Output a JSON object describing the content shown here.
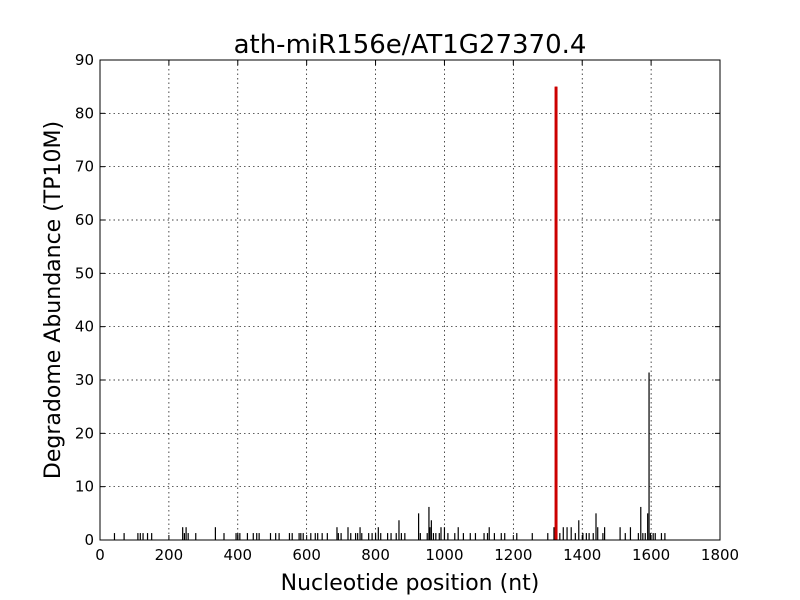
{
  "chart_data": {
    "type": "bar",
    "title": "ath-miR156e/AT1G27370.4",
    "xlabel": "Nucleotide position (nt)",
    "ylabel": "Degradome Abundance (TP10M)",
    "xlim": [
      0,
      1800
    ],
    "ylim": [
      0,
      90
    ],
    "xticks": [
      0,
      200,
      400,
      600,
      800,
      1000,
      1200,
      1400,
      1600,
      1800
    ],
    "yticks": [
      0,
      10,
      20,
      30,
      40,
      50,
      60,
      70,
      80,
      90
    ],
    "grid": true,
    "colors": {
      "background": "#000000",
      "highlight": "#cc0000"
    },
    "series": [
      {
        "color": "#000000",
        "points": [
          [
            42,
            1.3
          ],
          [
            70,
            1.3
          ],
          [
            110,
            1.3
          ],
          [
            117,
            1.3
          ],
          [
            125,
            1.3
          ],
          [
            138,
            1.3
          ],
          [
            150,
            1.3
          ],
          [
            240,
            2.4
          ],
          [
            245,
            1.3
          ],
          [
            250,
            2.4
          ],
          [
            256,
            1.3
          ],
          [
            278,
            1.3
          ],
          [
            335,
            2.4
          ],
          [
            360,
            1.3
          ],
          [
            395,
            1.3
          ],
          [
            400,
            1.3
          ],
          [
            406,
            1.3
          ],
          [
            428,
            1.3
          ],
          [
            445,
            1.3
          ],
          [
            455,
            1.3
          ],
          [
            462,
            1.3
          ],
          [
            495,
            1.3
          ],
          [
            510,
            1.3
          ],
          [
            520,
            1.3
          ],
          [
            550,
            1.3
          ],
          [
            558,
            1.3
          ],
          [
            578,
            1.3
          ],
          [
            583,
            1.3
          ],
          [
            590,
            1.3
          ],
          [
            612,
            1.3
          ],
          [
            625,
            1.3
          ],
          [
            632,
            1.3
          ],
          [
            645,
            1.3
          ],
          [
            660,
            1.3
          ],
          [
            688,
            2.4
          ],
          [
            692,
            1.3
          ],
          [
            700,
            1.3
          ],
          [
            720,
            2.4
          ],
          [
            728,
            1.3
          ],
          [
            742,
            1.3
          ],
          [
            748,
            1.3
          ],
          [
            755,
            2.4
          ],
          [
            760,
            1.3
          ],
          [
            780,
            1.3
          ],
          [
            790,
            1.3
          ],
          [
            800,
            1.3
          ],
          [
            808,
            2.4
          ],
          [
            815,
            1.3
          ],
          [
            835,
            1.3
          ],
          [
            845,
            1.3
          ],
          [
            860,
            1.3
          ],
          [
            868,
            3.7
          ],
          [
            875,
            1.3
          ],
          [
            885,
            1.3
          ],
          [
            925,
            5.0
          ],
          [
            930,
            1.3
          ],
          [
            950,
            1.3
          ],
          [
            955,
            6.2
          ],
          [
            958,
            2.4
          ],
          [
            962,
            3.7
          ],
          [
            968,
            1.3
          ],
          [
            975,
            1.3
          ],
          [
            985,
            1.3
          ],
          [
            990,
            2.4
          ],
          [
            1000,
            2.4
          ],
          [
            1010,
            1.3
          ],
          [
            1030,
            1.3
          ],
          [
            1040,
            2.4
          ],
          [
            1055,
            1.3
          ],
          [
            1075,
            1.3
          ],
          [
            1090,
            1.3
          ],
          [
            1115,
            1.3
          ],
          [
            1125,
            1.3
          ],
          [
            1130,
            2.4
          ],
          [
            1145,
            1.3
          ],
          [
            1165,
            1.3
          ],
          [
            1175,
            1.3
          ],
          [
            1210,
            1.3
          ],
          [
            1255,
            1.3
          ],
          [
            1300,
            1.3
          ],
          [
            1318,
            2.4
          ],
          [
            1335,
            1.3
          ],
          [
            1345,
            2.4
          ],
          [
            1356,
            2.4
          ],
          [
            1368,
            2.4
          ],
          [
            1380,
            1.3
          ],
          [
            1390,
            3.7
          ],
          [
            1402,
            1.3
          ],
          [
            1412,
            1.3
          ],
          [
            1420,
            1.3
          ],
          [
            1432,
            1.3
          ],
          [
            1440,
            5.0
          ],
          [
            1445,
            2.4
          ],
          [
            1460,
            1.3
          ],
          [
            1465,
            2.4
          ],
          [
            1510,
            2.4
          ],
          [
            1525,
            1.3
          ],
          [
            1540,
            2.4
          ],
          [
            1563,
            1.3
          ],
          [
            1570,
            6.2
          ],
          [
            1576,
            1.3
          ],
          [
            1583,
            1.3
          ],
          [
            1590,
            5.0
          ],
          [
            1594,
            31.4
          ],
          [
            1598,
            1.3
          ],
          [
            1606,
            1.3
          ],
          [
            1612,
            1.3
          ],
          [
            1630,
            1.3
          ],
          [
            1640,
            1.3
          ]
        ]
      },
      {
        "color": "#cc0000",
        "points": [
          [
            1322,
            85.0
          ],
          [
            1324,
            85.0
          ],
          [
            1326,
            85.0
          ]
        ]
      }
    ]
  }
}
